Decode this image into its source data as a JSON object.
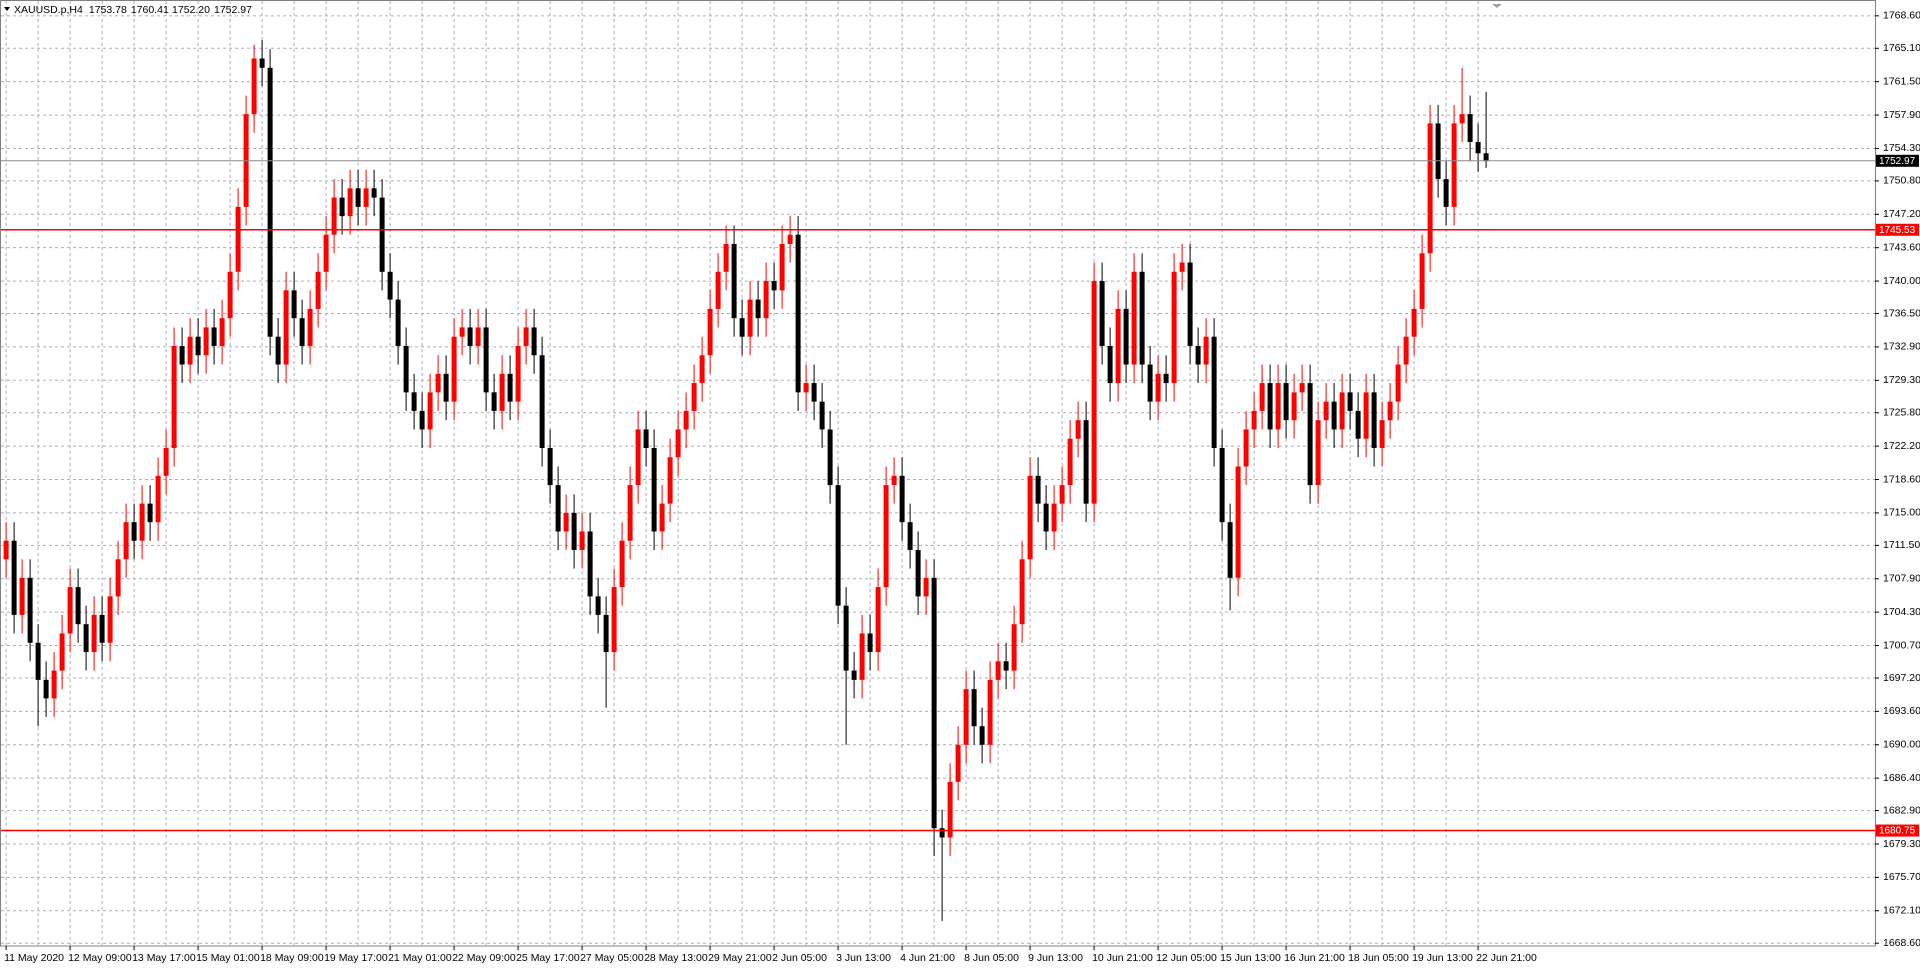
{
  "chart_data": {
    "type": "candlestick",
    "symbol": "XAUUSD.p,H4",
    "quote": [
      {
        "value": 1753.78,
        "label": "1753.78"
      },
      {
        "value": 1760.41,
        "label": "1760.41"
      },
      {
        "value": 1752.2,
        "label": "1752.20"
      },
      {
        "value": 1752.97,
        "label": "1752.97"
      }
    ],
    "categories": [
      "11 May 2020",
      null,
      null,
      null,
      null,
      null,
      null,
      null,
      "12 May 09:00",
      null,
      null,
      null,
      null,
      null,
      null,
      null,
      "13 May 17:00",
      null,
      null,
      null,
      null,
      null,
      null,
      null,
      "15 May 01:00",
      null,
      null,
      null,
      null,
      null,
      null,
      null,
      "18 May 09:00",
      null,
      null,
      null,
      null,
      null,
      null,
      null,
      "19 May 17:00",
      null,
      null,
      null,
      null,
      null,
      null,
      null,
      "21 May 01:00",
      null,
      null,
      null,
      null,
      null,
      null,
      null,
      "22 May 09:00",
      null,
      null,
      null,
      null,
      null,
      null,
      null,
      "25 May 17:00",
      null,
      null,
      null,
      null,
      null,
      null,
      null,
      "27 May 05:00",
      null,
      null,
      null,
      null,
      null,
      null,
      null,
      "28 May 13:00",
      null,
      null,
      null,
      null,
      null,
      null,
      null,
      "29 May 21:00",
      null,
      null,
      null,
      null,
      null,
      null,
      null,
      "2 Jun 05:00",
      null,
      null,
      null,
      null,
      null,
      null,
      null,
      "3 Jun 13:00",
      null,
      null,
      null,
      null,
      null,
      null,
      null,
      "4 Jun 21:00",
      null,
      null,
      null,
      null,
      null,
      null,
      null,
      "8 Jun 05:00",
      null,
      null,
      null,
      null,
      null,
      null,
      null,
      "9 Jun 13:00",
      null,
      null,
      null,
      null,
      null,
      null,
      null,
      "10 Jun 21:00",
      null,
      null,
      null,
      null,
      null,
      null,
      null,
      "12 Jun 05:00",
      null,
      null,
      null,
      null,
      null,
      null,
      null,
      "15 Jun 13:00",
      null,
      null,
      null,
      null,
      null,
      null,
      null,
      "16 Jun 21:00",
      null,
      null,
      null,
      null,
      null,
      null,
      null,
      "18 Jun 05:00",
      null,
      null,
      null,
      null,
      null,
      null,
      null,
      "19 Jun 13:00",
      null,
      null,
      null,
      null,
      null,
      null,
      null,
      "22 Jun 21:00",
      null
    ],
    "open": [
      1710,
      1712,
      1704,
      1708,
      1701,
      1697,
      1695,
      1698,
      1702,
      1707,
      1703,
      1700,
      1704,
      1701,
      1706,
      1710,
      1714,
      1712,
      1716,
      1714,
      1719,
      1722,
      1733,
      1731,
      1734,
      1732,
      1735,
      1733,
      1736,
      1741,
      1748,
      1758,
      1764,
      1763,
      1734,
      1731,
      1739,
      1736,
      1733,
      1737,
      1741,
      1745,
      1749,
      1747,
      1750,
      1748,
      1750,
      1749,
      1741,
      1738,
      1733,
      1728,
      1726,
      1724,
      1728,
      1730,
      1727,
      1734,
      1735,
      1733,
      1735,
      1728,
      1726,
      1730,
      1727,
      1733,
      1735,
      1732,
      1722,
      1718,
      1713,
      1715,
      1711,
      1713,
      1706,
      1704,
      1700,
      1707,
      1712,
      1718,
      1724,
      1722,
      1713,
      1716,
      1721,
      1724,
      1726,
      1729,
      1732,
      1737,
      1741,
      1744,
      1736,
      1734,
      1738,
      1736,
      1740,
      1739,
      1744,
      1745,
      1728,
      1729,
      1727,
      1724,
      1718,
      1705,
      1698,
      1697,
      1702,
      1700,
      1707,
      1718,
      1719,
      1714,
      1711,
      1706,
      1708,
      1681,
      1680,
      1686,
      1690,
      1696,
      1692,
      1690,
      1697,
      1699,
      1698,
      1703,
      1710,
      1719,
      1716,
      1713,
      1716,
      1718,
      1723,
      1725,
      1716,
      1740,
      1733,
      1729,
      1737,
      1731,
      1741,
      1731,
      1727,
      1730,
      1729,
      1741,
      1742,
      1733,
      1731,
      1734,
      1722,
      1714,
      1708,
      1720,
      1724,
      1726,
      1729,
      1724,
      1729,
      1725,
      1728,
      1729,
      1718,
      1725,
      1727,
      1724,
      1728,
      1726,
      1723,
      1728,
      1722,
      1725,
      1727,
      1731,
      1734,
      1737,
      1743,
      1757,
      1751,
      1748,
      1757,
      1758,
      1755,
      1753.78
    ],
    "high": [
      1714,
      1714,
      1710,
      1710,
      1703,
      1699,
      1700,
      1704,
      1709,
      1709,
      1705,
      1706,
      1706,
      1708,
      1712,
      1716,
      1716,
      1718,
      1718,
      1721,
      1724,
      1735,
      1735,
      1736,
      1736,
      1737,
      1737,
      1738,
      1743,
      1750,
      1760,
      1765.5,
      1766,
      1765,
      1736,
      1741,
      1741,
      1738,
      1739,
      1743,
      1747,
      1751,
      1751,
      1752,
      1752,
      1752,
      1752,
      1751,
      1743,
      1740,
      1735,
      1730,
      1728,
      1730,
      1732,
      1732,
      1736,
      1737,
      1737,
      1737,
      1737,
      1730,
      1732,
      1732,
      1735,
      1737,
      1737,
      1734,
      1724,
      1720,
      1717,
      1717,
      1715,
      1715,
      1708,
      1706,
      1709,
      1714,
      1720,
      1726,
      1726,
      1724,
      1718,
      1723,
      1726,
      1728,
      1731,
      1734,
      1739,
      1743,
      1746,
      1746,
      1738,
      1740,
      1740,
      1742,
      1742,
      1746,
      1747,
      1747,
      1731,
      1731,
      1729,
      1726,
      1720,
      1707,
      1700,
      1704,
      1704,
      1709,
      1720,
      1721,
      1721,
      1716,
      1713,
      1710,
      1710,
      1683,
      1688,
      1692,
      1698,
      1698,
      1694,
      1699,
      1701,
      1701,
      1705,
      1712,
      1721,
      1721,
      1718,
      1718,
      1720,
      1725,
      1727,
      1727,
      1742,
      1742,
      1735,
      1739,
      1739,
      1743,
      1743,
      1733,
      1732,
      1732,
      1743,
      1744,
      1744,
      1735,
      1736,
      1736,
      1724,
      1716,
      1722,
      1726,
      1728,
      1731,
      1731,
      1731,
      1731,
      1730,
      1731,
      1731,
      1727,
      1729,
      1729,
      1730,
      1730,
      1728,
      1730,
      1730,
      1727,
      1729,
      1733,
      1736,
      1739,
      1745,
      1759,
      1759,
      1753,
      1759,
      1763,
      1760,
      1757,
      1760.41
    ],
    "low": [
      1708,
      1702,
      1702,
      1699,
      1692,
      1693,
      1693,
      1696,
      1700,
      1701,
      1698,
      1698,
      1699,
      1699,
      1704,
      1708,
      1710,
      1710,
      1712,
      1712,
      1717,
      1720,
      1729,
      1729,
      1730,
      1730,
      1731,
      1731,
      1734,
      1739,
      1746,
      1756,
      1761,
      1732,
      1729,
      1729,
      1734,
      1731,
      1731,
      1735,
      1739,
      1743,
      1745,
      1745,
      1746,
      1746,
      1747,
      1739,
      1736,
      1731,
      1726,
      1724,
      1722,
      1722,
      1726,
      1725,
      1725,
      1732,
      1731,
      1731,
      1726,
      1724,
      1724,
      1725,
      1725,
      1731,
      1730,
      1720,
      1716,
      1711,
      1711,
      1709,
      1709,
      1704,
      1702,
      1694,
      1698,
      1705,
      1710,
      1716,
      1720,
      1711,
      1711,
      1714,
      1719,
      1722,
      1724,
      1727,
      1730,
      1735,
      1739,
      1734,
      1732,
      1732,
      1734,
      1734,
      1737,
      1737,
      1742,
      1726,
      1726,
      1725,
      1722,
      1716,
      1703,
      1690,
      1695,
      1695,
      1698,
      1698,
      1705,
      1716,
      1712,
      1709,
      1704,
      1704,
      1678,
      1671,
      1678,
      1684,
      1688,
      1690,
      1688,
      1688,
      1695,
      1696,
      1696,
      1701,
      1708,
      1714,
      1711,
      1711,
      1714,
      1716,
      1721,
      1714,
      1714,
      1731,
      1727,
      1727,
      1729,
      1729,
      1729,
      1725,
      1725,
      1727,
      1727,
      1739,
      1731,
      1729,
      1729,
      1720,
      1712,
      1704.5,
      1706,
      1718,
      1722,
      1724,
      1722,
      1722,
      1723,
      1723,
      1726,
      1716,
      1716,
      1723,
      1722,
      1722,
      1724,
      1721,
      1721,
      1720,
      1720,
      1723,
      1725,
      1729,
      1732,
      1735,
      1741,
      1749,
      1746,
      1746,
      1755,
      1753,
      1751.78,
      1752.2
    ],
    "close": [
      1712,
      1704,
      1708,
      1701,
      1697,
      1695,
      1698,
      1702,
      1707,
      1703,
      1700,
      1704,
      1701,
      1706,
      1710,
      1714,
      1712,
      1716,
      1714,
      1719,
      1722,
      1733,
      1731,
      1734,
      1732,
      1735,
      1733,
      1736,
      1741,
      1748,
      1758,
      1764,
      1763,
      1734,
      1731,
      1739,
      1736,
      1733,
      1737,
      1741,
      1745,
      1749,
      1747,
      1750,
      1748,
      1750,
      1749,
      1741,
      1738,
      1733,
      1728,
      1726,
      1724,
      1728,
      1730,
      1727,
      1734,
      1735,
      1733,
      1735,
      1728,
      1726,
      1730,
      1727,
      1733,
      1735,
      1732,
      1722,
      1718,
      1713,
      1715,
      1711,
      1713,
      1706,
      1704,
      1700,
      1707,
      1712,
      1718,
      1724,
      1722,
      1713,
      1716,
      1721,
      1724,
      1726,
      1729,
      1732,
      1737,
      1741,
      1744,
      1736,
      1734,
      1738,
      1736,
      1740,
      1739,
      1744,
      1745,
      1728,
      1729,
      1727,
      1724,
      1718,
      1705,
      1698,
      1697,
      1702,
      1700,
      1707,
      1718,
      1719,
      1714,
      1711,
      1706,
      1708,
      1681,
      1680,
      1686,
      1690,
      1696,
      1692,
      1690,
      1697,
      1699,
      1698,
      1703,
      1710,
      1719,
      1716,
      1713,
      1716,
      1718,
      1723,
      1725,
      1716,
      1740,
      1733,
      1729,
      1737,
      1731,
      1741,
      1731,
      1727,
      1730,
      1729,
      1741,
      1742,
      1733,
      1731,
      1734,
      1722,
      1714,
      1708,
      1720,
      1724,
      1726,
      1729,
      1724,
      1729,
      1725,
      1728,
      1729,
      1718,
      1725,
      1727,
      1724,
      1728,
      1726,
      1723,
      1728,
      1722,
      1725,
      1727,
      1731,
      1734,
      1737,
      1743,
      1757,
      1751,
      1748,
      1757,
      1758,
      1755,
      1753.78,
      1752.97
    ],
    "up_color": "#ff0000",
    "down_color": "#000000",
    "ylim": [
      1668.3,
      1770.2
    ],
    "yticks": [
      {
        "value": 1768.6,
        "label": "1768.60"
      },
      {
        "value": 1765.1,
        "label": "1765.10"
      },
      {
        "value": 1761.5,
        "label": "1761.50"
      },
      {
        "value": 1757.9,
        "label": "1757.90"
      },
      {
        "value": 1754.3,
        "label": "1754.30"
      },
      {
        "value": 1750.8,
        "label": "1750.80"
      },
      {
        "value": 1747.2,
        "label": "1747.20"
      },
      {
        "value": 1743.6,
        "label": "1743.60"
      },
      {
        "value": 1740.0,
        "label": "1740.00"
      },
      {
        "value": 1736.5,
        "label": "1736.50"
      },
      {
        "value": 1732.9,
        "label": "1732.90"
      },
      {
        "value": 1729.3,
        "label": "1729.30"
      },
      {
        "value": 1725.8,
        "label": "1725.80"
      },
      {
        "value": 1722.2,
        "label": "1722.20"
      },
      {
        "value": 1718.6,
        "label": "1718.60"
      },
      {
        "value": 1715.0,
        "label": "1715.00"
      },
      {
        "value": 1711.5,
        "label": "1711.50"
      },
      {
        "value": 1707.9,
        "label": "1707.90"
      },
      {
        "value": 1704.3,
        "label": "1704.30"
      },
      {
        "value": 1700.7,
        "label": "1700.70"
      },
      {
        "value": 1697.2,
        "label": "1697.20"
      },
      {
        "value": 1693.6,
        "label": "1693.60"
      },
      {
        "value": 1690.0,
        "label": "1690.00"
      },
      {
        "value": 1686.4,
        "label": "1686.40"
      },
      {
        "value": 1682.9,
        "label": "1682.90"
      },
      {
        "value": 1679.3,
        "label": "1679.30"
      },
      {
        "value": 1675.7,
        "label": "1675.70"
      },
      {
        "value": 1672.1,
        "label": "1672.10"
      },
      {
        "value": 1668.6,
        "label": "1668.60"
      }
    ],
    "grid": true,
    "levels": [
      {
        "value": 1745.53,
        "color": "#ff0000"
      },
      {
        "value": 1680.75,
        "color": "#ff0000"
      }
    ],
    "current": {
      "value": 1752.97,
      "color": "#8c8c8c",
      "box_color": "#000000"
    }
  }
}
